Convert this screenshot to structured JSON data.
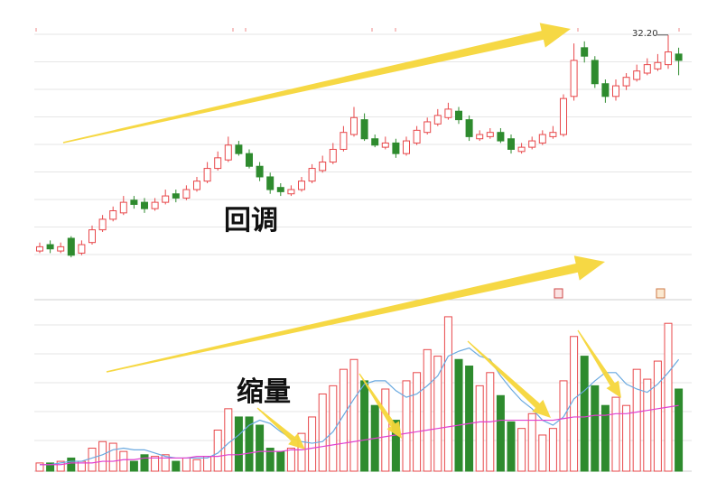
{
  "chart_data": [
    {
      "type": "candlestick",
      "up_color": "#e8474a",
      "down_color": "#2e8b2e",
      "ylim": [
        20,
        33
      ],
      "open": [
        22.0,
        22.3,
        22.0,
        22.6,
        21.9,
        22.4,
        23.0,
        23.5,
        23.8,
        24.4,
        24.3,
        24.0,
        24.3,
        24.7,
        24.5,
        24.9,
        25.3,
        25.9,
        26.3,
        27.0,
        26.6,
        26.0,
        25.5,
        25.0,
        24.7,
        24.9,
        25.3,
        25.8,
        26.2,
        26.8,
        27.5,
        28.2,
        27.3,
        26.9,
        27.1,
        26.6,
        27.1,
        27.6,
        28.0,
        28.3,
        28.6,
        28.2,
        27.3,
        27.4,
        27.6,
        27.3,
        26.7,
        26.9,
        27.1,
        27.4,
        27.5,
        29.3,
        31.6,
        31.0,
        29.9,
        29.3,
        29.8,
        30.1,
        30.4,
        30.6,
        30.8,
        31.3
      ],
      "high": [
        22.4,
        22.5,
        22.4,
        22.7,
        22.5,
        23.2,
        23.7,
        24.1,
        24.6,
        24.6,
        24.5,
        24.5,
        24.9,
        24.9,
        25.1,
        25.5,
        26.2,
        26.7,
        27.4,
        27.2,
        26.8,
        26.2,
        25.7,
        25.2,
        25.1,
        25.5,
        26.1,
        26.5,
        27.1,
        27.9,
        28.8,
        28.5,
        27.5,
        27.4,
        27.3,
        27.4,
        27.9,
        28.3,
        28.7,
        29.0,
        28.8,
        28.4,
        27.7,
        27.8,
        27.8,
        27.5,
        27.1,
        27.4,
        27.7,
        27.9,
        29.4,
        31.8,
        31.9,
        31.2,
        30.1,
        30.1,
        30.4,
        30.8,
        31.1,
        31.3,
        32.2,
        31.6
      ],
      "low": [
        21.9,
        21.9,
        21.9,
        21.7,
        21.8,
        22.3,
        22.9,
        23.4,
        23.7,
        24.0,
        23.8,
        23.9,
        24.2,
        24.3,
        24.4,
        24.8,
        25.2,
        25.8,
        26.2,
        26.5,
        25.9,
        25.3,
        24.7,
        24.6,
        24.6,
        24.8,
        25.2,
        25.7,
        26.1,
        26.7,
        27.4,
        27.2,
        26.9,
        26.8,
        26.4,
        26.5,
        27.0,
        27.5,
        27.9,
        28.2,
        28.0,
        27.2,
        27.2,
        27.3,
        27.1,
        26.6,
        26.6,
        26.8,
        27.0,
        27.3,
        27.4,
        29.1,
        30.9,
        29.7,
        29.0,
        29.1,
        29.6,
        30.0,
        30.3,
        30.5,
        30.6,
        30.3
      ],
      "close": [
        22.2,
        22.1,
        22.2,
        21.8,
        22.3,
        23.0,
        23.5,
        23.9,
        24.3,
        24.2,
        24.0,
        24.3,
        24.6,
        24.5,
        24.9,
        25.3,
        25.9,
        26.4,
        27.0,
        26.6,
        26.0,
        25.5,
        24.9,
        24.8,
        24.9,
        25.3,
        25.9,
        26.2,
        26.8,
        27.6,
        28.3,
        27.3,
        27.0,
        27.1,
        26.6,
        27.2,
        27.7,
        28.1,
        28.4,
        28.7,
        28.2,
        27.4,
        27.5,
        27.6,
        27.2,
        26.8,
        26.9,
        27.2,
        27.5,
        27.6,
        29.2,
        31.0,
        31.2,
        29.9,
        29.3,
        29.8,
        30.2,
        30.5,
        30.8,
        30.9,
        31.4,
        31.0
      ],
      "high_label": "32.20",
      "annotation": "回调"
    },
    {
      "type": "bar",
      "ylim": [
        0,
        100
      ],
      "values": [
        5,
        5,
        6,
        8,
        6,
        14,
        18,
        17,
        12,
        6,
        10,
        9,
        10,
        6,
        8,
        7,
        9,
        25,
        38,
        33,
        33,
        28,
        14,
        12,
        14,
        23,
        33,
        47,
        52,
        62,
        68,
        55,
        40,
        50,
        31,
        55,
        60,
        74,
        70,
        94,
        68,
        64,
        52,
        60,
        46,
        30,
        26,
        35,
        22,
        26,
        55,
        82,
        70,
        52,
        40,
        45,
        40,
        62,
        56,
        67,
        90,
        50
      ],
      "series": [
        {
          "color": "#6aa9e0",
          "values": [
            4,
            4,
            5,
            6,
            6,
            8,
            10,
            13,
            14,
            13,
            13,
            11,
            9,
            8,
            8,
            8,
            8,
            11,
            17,
            22,
            28,
            31,
            29,
            24,
            20,
            18,
            17,
            18,
            24,
            34,
            44,
            53,
            55,
            55,
            49,
            45,
            47,
            52,
            58,
            70,
            73,
            75,
            70,
            68,
            58,
            50,
            43,
            38,
            31,
            28,
            33,
            44,
            49,
            55,
            60,
            60,
            53,
            50,
            48,
            53,
            60,
            68
          ]
        },
        {
          "color": "#e040d0",
          "values": [
            4,
            4,
            4,
            5,
            5,
            5,
            6,
            6,
            7,
            7,
            8,
            8,
            8,
            8,
            8,
            9,
            9,
            9,
            10,
            10,
            11,
            12,
            12,
            12,
            13,
            13,
            14,
            15,
            16,
            17,
            18,
            19,
            20,
            21,
            22,
            23,
            24,
            25,
            26,
            27,
            28,
            29,
            30,
            30,
            31,
            31,
            31,
            31,
            31,
            31,
            32,
            33,
            33,
            34,
            34,
            35,
            35,
            36,
            37,
            38,
            39,
            40
          ]
        }
      ],
      "annotation": "缩量"
    }
  ]
}
